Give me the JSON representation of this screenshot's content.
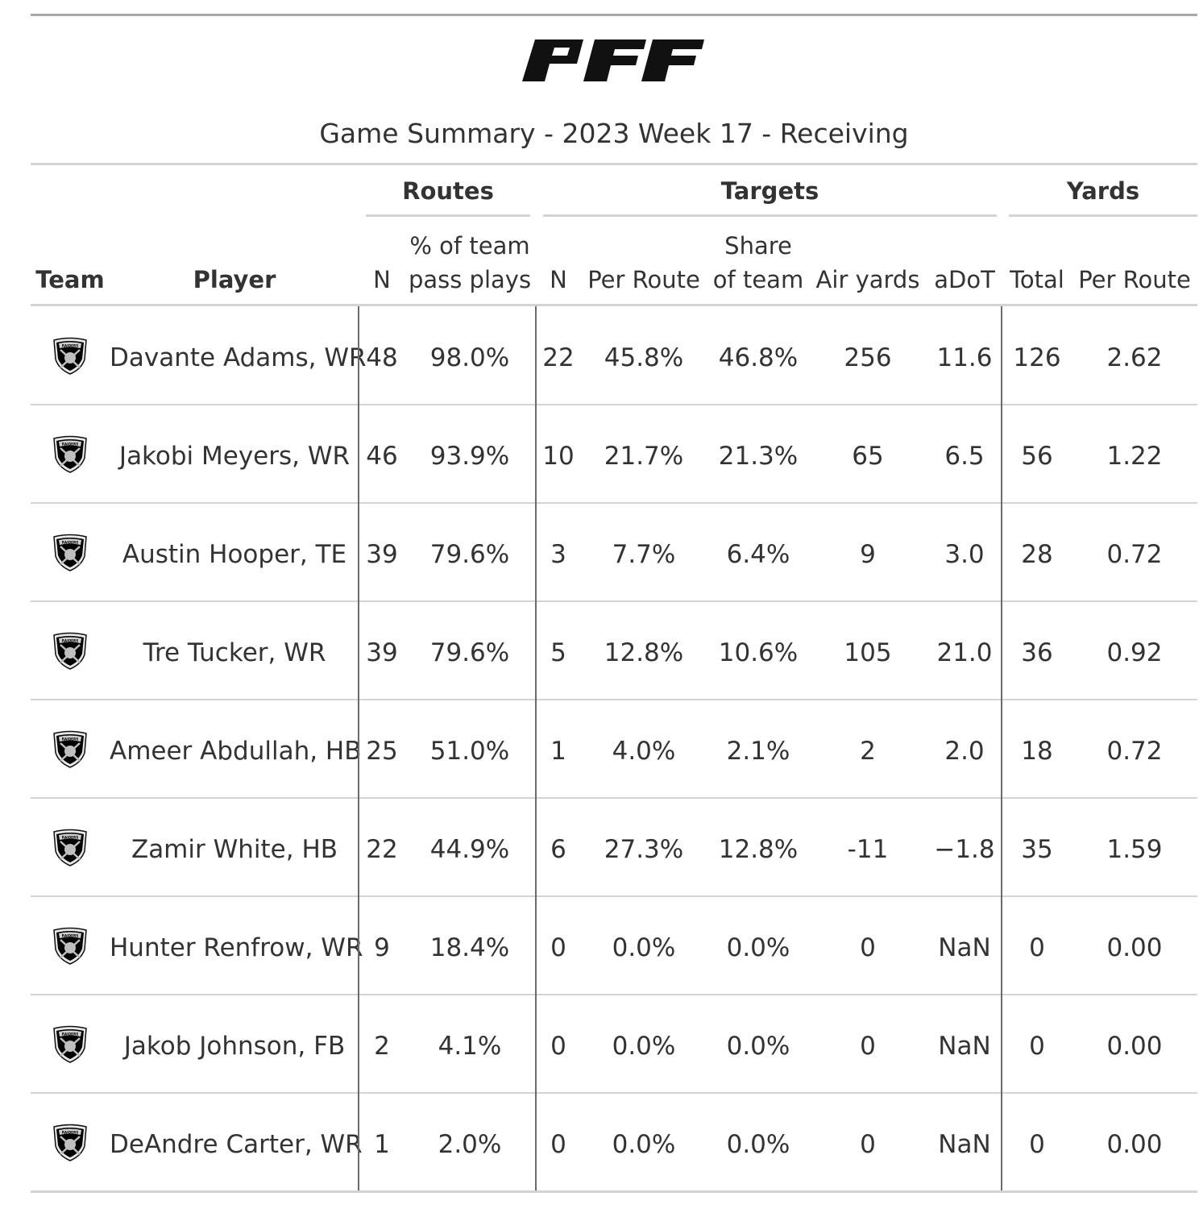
{
  "logo_text": "PFF",
  "title": "Game Summary - 2023 Week 17 - Receiving",
  "spanners": {
    "routes": "Routes",
    "targets": "Targets",
    "yards": "Yards"
  },
  "columns": {
    "team": "Team",
    "player": "Player",
    "routes_n": "N",
    "routes_pct_line1": "% of team",
    "routes_pct_line2": "pass plays",
    "targets_n": "N",
    "targets_per_route": "Per Route",
    "targets_share_line1": "Share",
    "targets_share_line2": "of team",
    "air_yards": "Air yards",
    "adot": "aDoT",
    "yards_total": "Total",
    "yards_per_route": "Per Route"
  },
  "team_logo_text": "RAIDERS",
  "rows": [
    {
      "player": "Davante Adams, WR",
      "routes_n": "48",
      "routes_pct": "98.0%",
      "targets_n": "22",
      "targets_per_route": "45.8%",
      "targets_share": "46.8%",
      "air_yards": "256",
      "adot": "11.6",
      "yards_total": "126",
      "yards_per_route": "2.62"
    },
    {
      "player": "Jakobi Meyers, WR",
      "routes_n": "46",
      "routes_pct": "93.9%",
      "targets_n": "10",
      "targets_per_route": "21.7%",
      "targets_share": "21.3%",
      "air_yards": "65",
      "adot": "6.5",
      "yards_total": "56",
      "yards_per_route": "1.22"
    },
    {
      "player": "Austin Hooper, TE",
      "routes_n": "39",
      "routes_pct": "79.6%",
      "targets_n": "3",
      "targets_per_route": "7.7%",
      "targets_share": "6.4%",
      "air_yards": "9",
      "adot": "3.0",
      "yards_total": "28",
      "yards_per_route": "0.72"
    },
    {
      "player": "Tre Tucker, WR",
      "routes_n": "39",
      "routes_pct": "79.6%",
      "targets_n": "5",
      "targets_per_route": "12.8%",
      "targets_share": "10.6%",
      "air_yards": "105",
      "adot": "21.0",
      "yards_total": "36",
      "yards_per_route": "0.92"
    },
    {
      "player": "Ameer Abdullah, HB",
      "routes_n": "25",
      "routes_pct": "51.0%",
      "targets_n": "1",
      "targets_per_route": "4.0%",
      "targets_share": "2.1%",
      "air_yards": "2",
      "adot": "2.0",
      "yards_total": "18",
      "yards_per_route": "0.72"
    },
    {
      "player": "Zamir White, HB",
      "routes_n": "22",
      "routes_pct": "44.9%",
      "targets_n": "6",
      "targets_per_route": "27.3%",
      "targets_share": "12.8%",
      "air_yards": "-11",
      "adot": "−1.8",
      "yards_total": "35",
      "yards_per_route": "1.59"
    },
    {
      "player": "Hunter Renfrow, WR",
      "routes_n": "9",
      "routes_pct": "18.4%",
      "targets_n": "0",
      "targets_per_route": "0.0%",
      "targets_share": "0.0%",
      "air_yards": "0",
      "adot": "NaN",
      "yards_total": "0",
      "yards_per_route": "0.00"
    },
    {
      "player": "Jakob Johnson, FB",
      "routes_n": "2",
      "routes_pct": "4.1%",
      "targets_n": "0",
      "targets_per_route": "0.0%",
      "targets_share": "0.0%",
      "air_yards": "0",
      "adot": "NaN",
      "yards_total": "0",
      "yards_per_route": "0.00"
    },
    {
      "player": "DeAndre Carter, WR",
      "routes_n": "1",
      "routes_pct": "2.0%",
      "targets_n": "0",
      "targets_per_route": "0.0%",
      "targets_share": "0.0%",
      "air_yards": "0",
      "adot": "NaN",
      "yards_total": "0",
      "yards_per_route": "0.00"
    }
  ]
}
